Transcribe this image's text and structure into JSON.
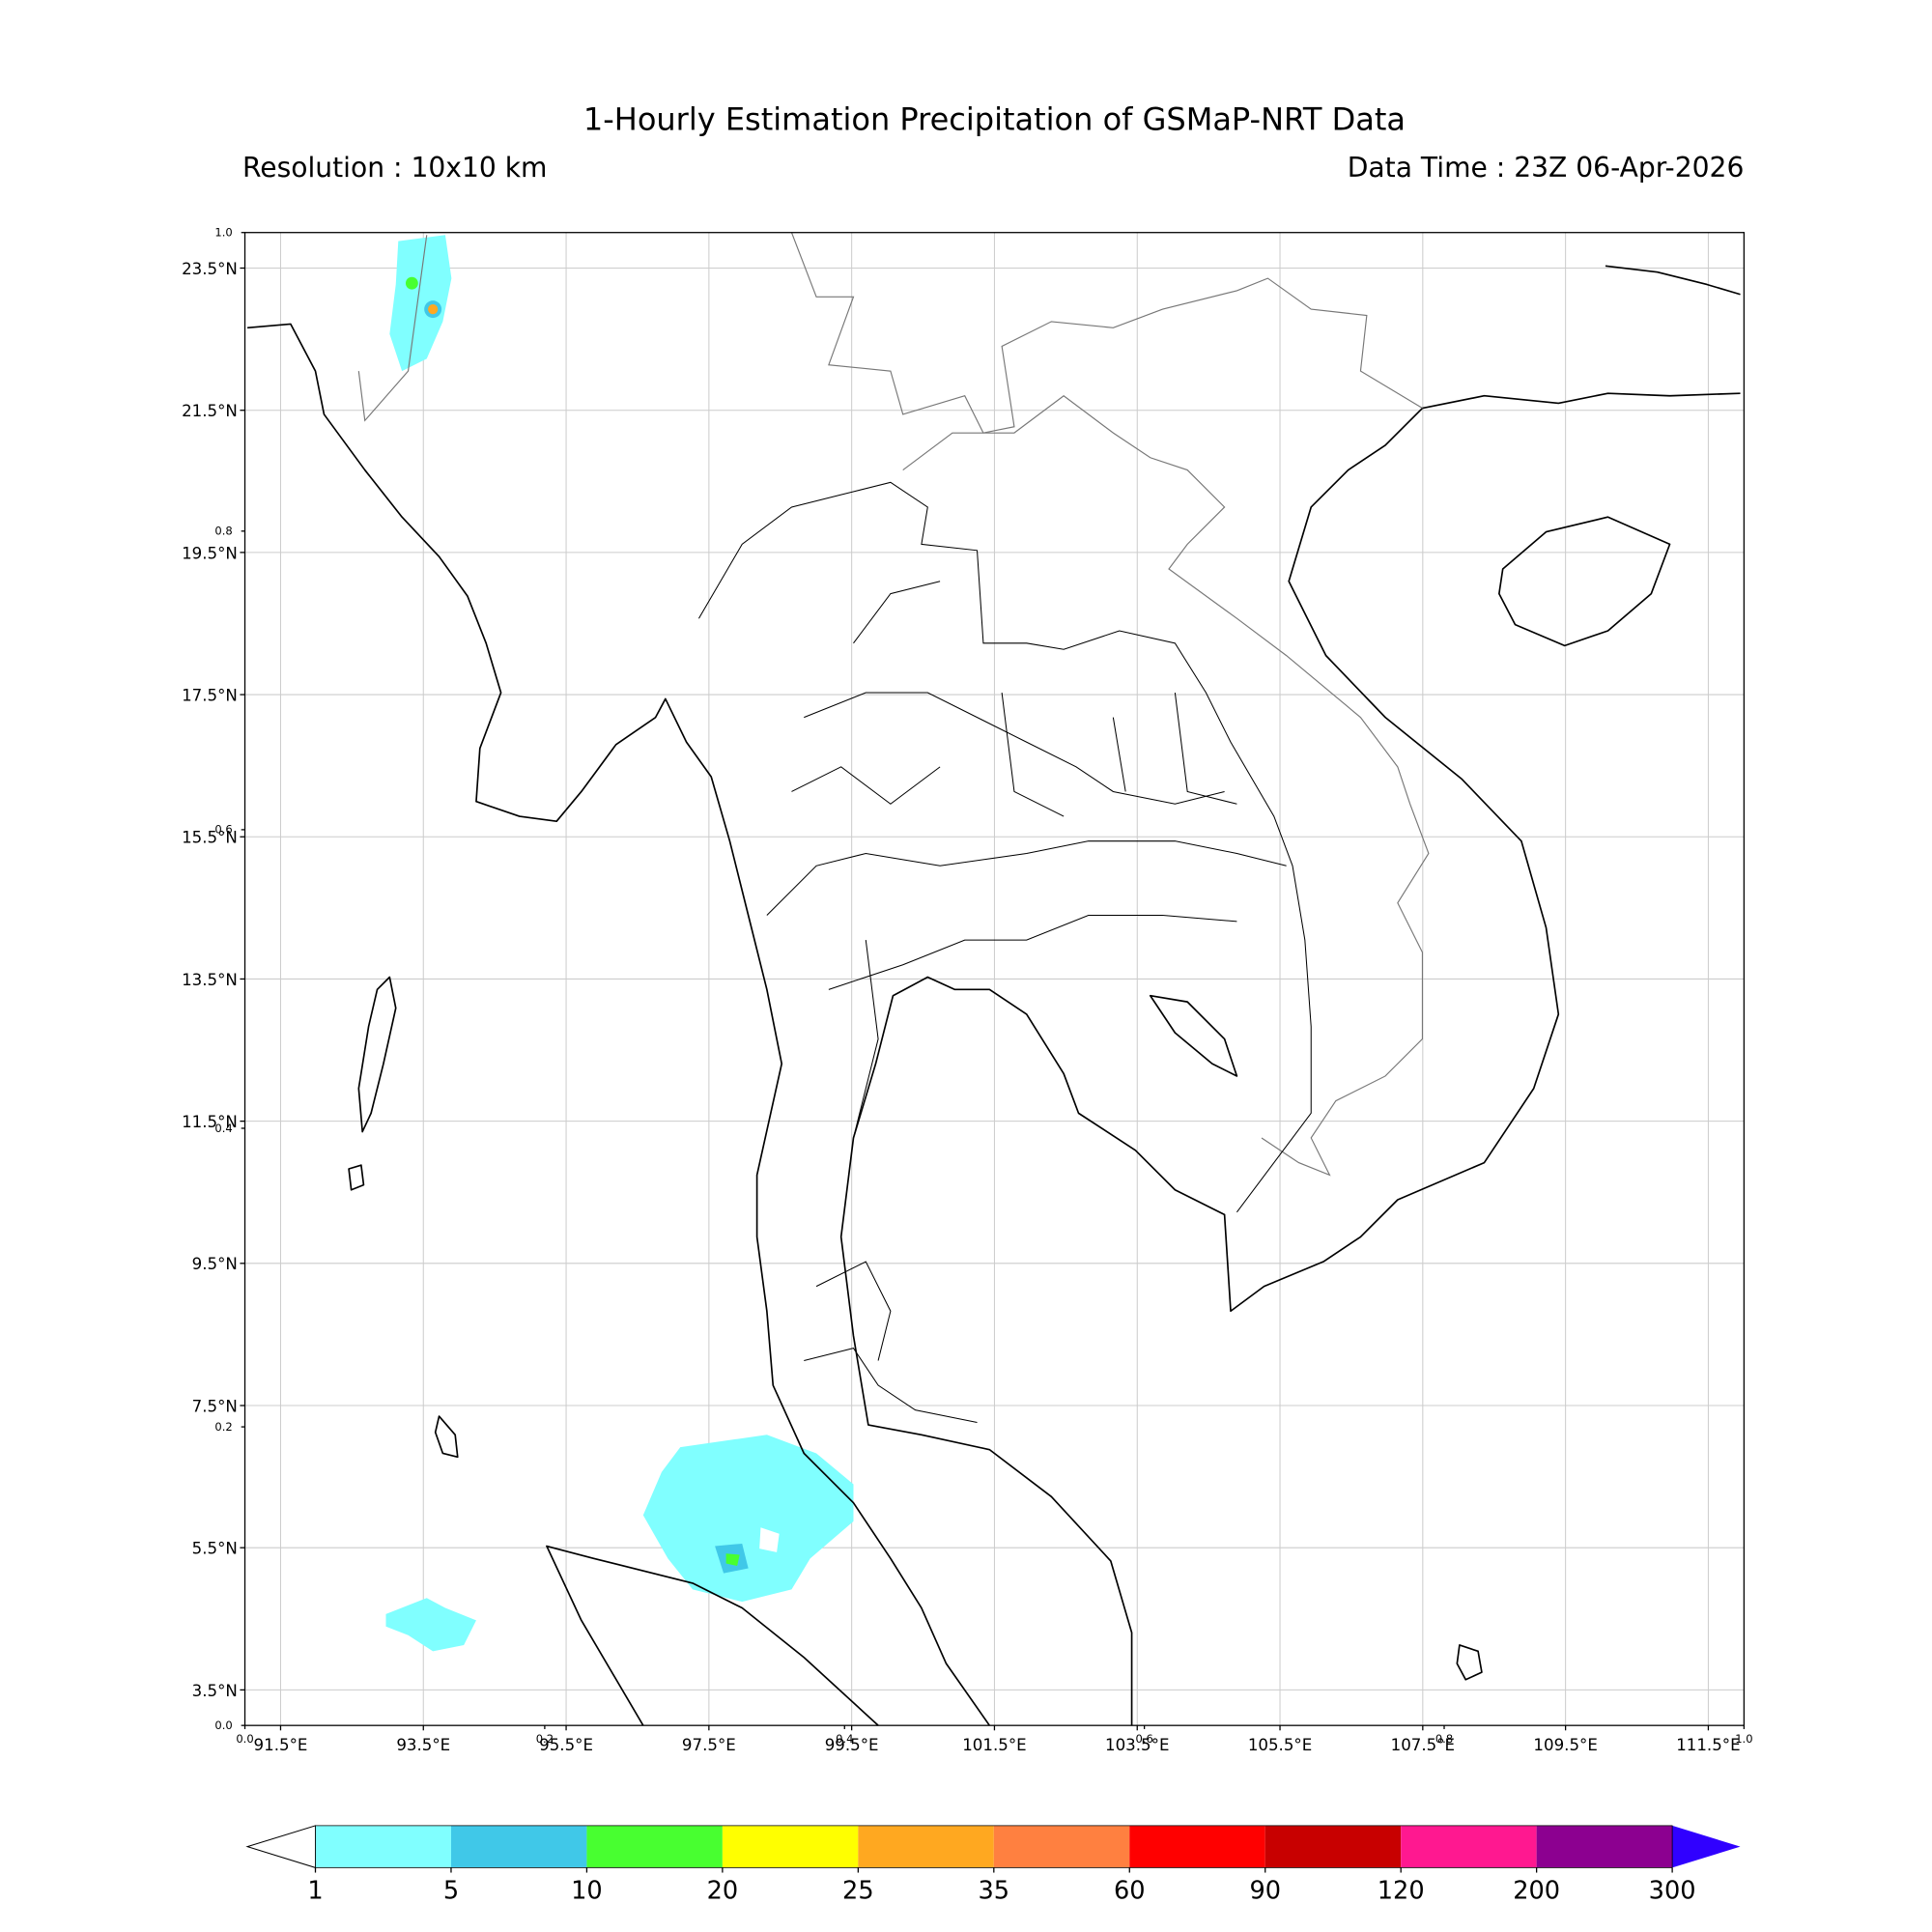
{
  "title": "1-Hourly Estimation Precipitation of GSMaP-NRT Data",
  "resolution": "Resolution : 10x10 km",
  "data_time": "Data Time : 23Z 06-Apr-2026",
  "map": {
    "xlim": [
      91,
      112
    ],
    "ylim": [
      3,
      24
    ],
    "xticks": [
      {
        "value": 91.5,
        "label": "91.5°E"
      },
      {
        "value": 93.5,
        "label": "93.5°E"
      },
      {
        "value": 95.5,
        "label": "95.5°E"
      },
      {
        "value": 97.5,
        "label": "97.5°E"
      },
      {
        "value": 99.5,
        "label": "99.5°E"
      },
      {
        "value": 101.5,
        "label": "101.5°E"
      },
      {
        "value": 103.5,
        "label": "103.5°E"
      },
      {
        "value": 105.5,
        "label": "105.5°E"
      },
      {
        "value": 107.5,
        "label": "107.5°E"
      },
      {
        "value": 109.5,
        "label": "109.5°E"
      },
      {
        "value": 111.5,
        "label": "111.5°E"
      }
    ],
    "yticks": [
      {
        "value": 3.5,
        "label": "3.5°N"
      },
      {
        "value": 5.5,
        "label": "5.5°N"
      },
      {
        "value": 7.5,
        "label": "7.5°N"
      },
      {
        "value": 9.5,
        "label": "9.5°N"
      },
      {
        "value": 11.5,
        "label": "11.5°N"
      },
      {
        "value": 13.5,
        "label": "13.5°N"
      },
      {
        "value": 15.5,
        "label": "15.5°N"
      },
      {
        "value": 17.5,
        "label": "17.5°N"
      },
      {
        "value": 19.5,
        "label": "19.5°N"
      },
      {
        "value": 21.5,
        "label": "21.5°N"
      },
      {
        "value": 23.5,
        "label": "23.5°N"
      }
    ],
    "grid": true,
    "frame_xlim": [
      0,
      1
    ],
    "frame_ylim": [
      0,
      1
    ],
    "frame_xticks": [
      {
        "value": 0,
        "label": "0.0"
      },
      {
        "value": 0.2,
        "label": "0.2"
      },
      {
        "value": 0.4,
        "label": "0.4"
      },
      {
        "value": 0.6,
        "label": "0.6"
      },
      {
        "value": 0.8,
        "label": "0.8"
      },
      {
        "value": 1,
        "label": "1.0"
      }
    ],
    "frame_yticks": [
      {
        "value": 0,
        "label": "0.0"
      },
      {
        "value": 0.2,
        "label": "0.2"
      },
      {
        "value": 0.4,
        "label": "0.4"
      },
      {
        "value": 0.6,
        "label": "0.6"
      },
      {
        "value": 0.8,
        "label": "0.8"
      },
      {
        "value": 1,
        "label": "1.0"
      }
    ]
  },
  "colorbar": {
    "levels": [
      1,
      5,
      10,
      20,
      25,
      35,
      60,
      90,
      120,
      200,
      300
    ],
    "colors": [
      "#80ffff",
      "#40c8e8",
      "#48ff30",
      "#ffff00",
      "#ffa820",
      "#ff8040",
      "#ff0000",
      "#c80000",
      "#ff1890",
      "#8c0090"
    ],
    "under_color": "#ffffff",
    "over_color": "#3000ff"
  }
}
